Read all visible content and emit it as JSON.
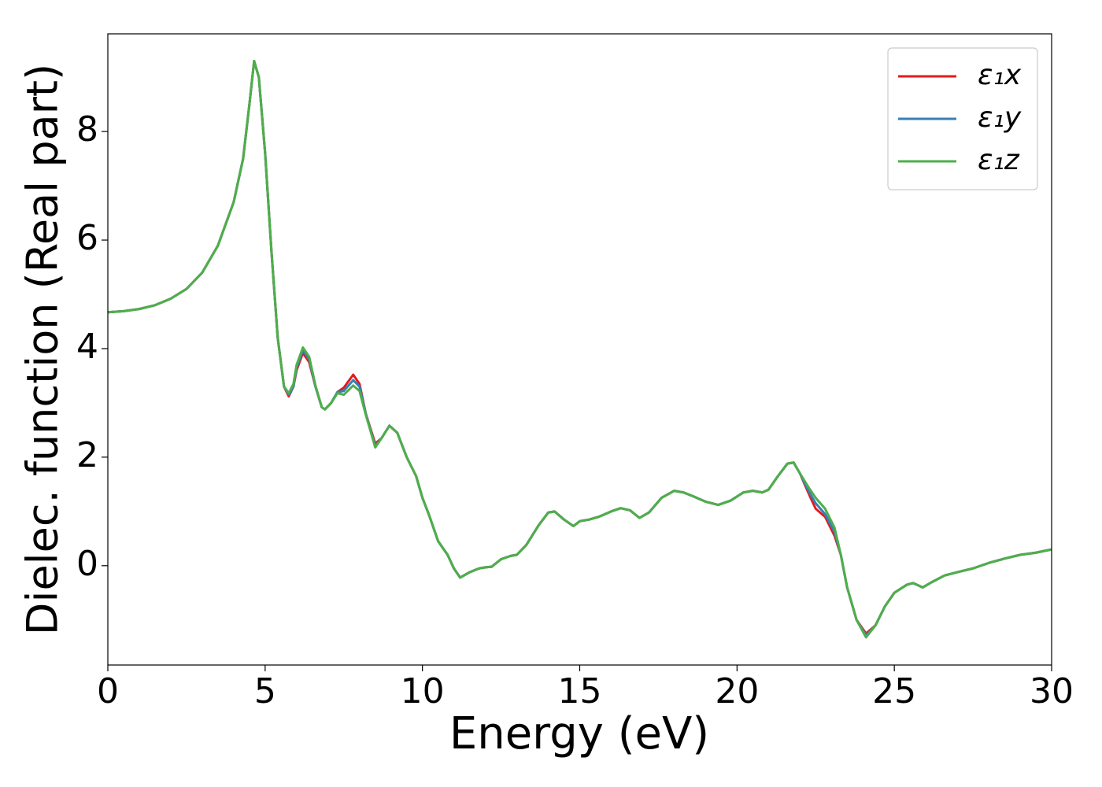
{
  "chart_data": {
    "type": "line",
    "xlabel": "Energy (eV)",
    "ylabel": "Dielec. function (Real part)",
    "x": [
      0,
      0.5,
      1,
      1.5,
      2,
      2.5,
      3,
      3.5,
      4,
      4.3,
      4.5,
      4.65,
      4.8,
      5.0,
      5.2,
      5.4,
      5.6,
      5.75,
      5.9,
      6.0,
      6.2,
      6.4,
      6.6,
      6.8,
      6.9,
      7.1,
      7.3,
      7.5,
      7.8,
      8.0,
      8.2,
      8.5,
      8.7,
      8.95,
      9.2,
      9.5,
      9.8,
      10.0,
      10.2,
      10.5,
      10.8,
      11.0,
      11.2,
      11.5,
      11.8,
      12.0,
      12.2,
      12.5,
      12.8,
      13.0,
      13.3,
      13.7,
      14.0,
      14.2,
      14.5,
      14.8,
      15.0,
      15.3,
      15.6,
      16.0,
      16.3,
      16.6,
      16.9,
      17.2,
      17.6,
      18.0,
      18.3,
      18.6,
      19.0,
      19.4,
      19.8,
      20.2,
      20.5,
      20.8,
      21.0,
      21.3,
      21.6,
      21.8,
      22.0,
      22.3,
      22.5,
      22.8,
      23.1,
      23.3,
      23.5,
      23.8,
      24.1,
      24.4,
      24.7,
      25.0,
      25.4,
      25.6,
      25.9,
      26.2,
      26.6,
      27.0,
      27.5,
      28.0,
      28.5,
      29.0,
      29.5,
      30.0
    ],
    "series": [
      {
        "name": "ε₁x",
        "color": "#e41a1c",
        "values": [
          4.67,
          4.69,
          4.73,
          4.8,
          4.92,
          5.1,
          5.4,
          5.9,
          6.7,
          7.5,
          8.5,
          9.3,
          9.0,
          7.6,
          5.8,
          4.2,
          3.3,
          3.12,
          3.3,
          3.6,
          3.92,
          3.75,
          3.3,
          2.92,
          2.88,
          3.0,
          3.2,
          3.28,
          3.52,
          3.35,
          2.8,
          2.25,
          2.35,
          2.58,
          2.45,
          2.0,
          1.65,
          1.25,
          0.95,
          0.45,
          0.2,
          -0.05,
          -0.22,
          -0.12,
          -0.05,
          -0.03,
          -0.02,
          0.12,
          0.18,
          0.2,
          0.38,
          0.75,
          0.98,
          1.0,
          0.85,
          0.73,
          0.82,
          0.85,
          0.9,
          1.0,
          1.06,
          1.02,
          0.88,
          0.98,
          1.25,
          1.38,
          1.35,
          1.28,
          1.18,
          1.12,
          1.2,
          1.35,
          1.38,
          1.35,
          1.4,
          1.65,
          1.88,
          1.9,
          1.7,
          1.3,
          1.05,
          0.9,
          0.55,
          0.2,
          -0.4,
          -1.0,
          -1.25,
          -1.1,
          -0.75,
          -0.5,
          -0.35,
          -0.32,
          -0.4,
          -0.3,
          -0.18,
          -0.12,
          -0.05,
          0.05,
          0.13,
          0.2,
          0.24,
          0.3
        ]
      },
      {
        "name": "ε₁y",
        "color": "#377eb8",
        "values": [
          4.67,
          4.69,
          4.73,
          4.8,
          4.92,
          5.1,
          5.4,
          5.9,
          6.7,
          7.5,
          8.5,
          9.3,
          9.0,
          7.6,
          5.8,
          4.2,
          3.3,
          3.15,
          3.3,
          3.65,
          3.97,
          3.8,
          3.3,
          2.92,
          2.88,
          3.0,
          3.2,
          3.22,
          3.42,
          3.3,
          2.8,
          2.2,
          2.35,
          2.58,
          2.45,
          2.0,
          1.65,
          1.25,
          0.95,
          0.45,
          0.2,
          -0.05,
          -0.22,
          -0.12,
          -0.05,
          -0.03,
          -0.02,
          0.12,
          0.18,
          0.2,
          0.38,
          0.75,
          0.98,
          1.0,
          0.85,
          0.73,
          0.82,
          0.85,
          0.9,
          1.0,
          1.06,
          1.02,
          0.88,
          0.98,
          1.25,
          1.38,
          1.35,
          1.28,
          1.18,
          1.12,
          1.2,
          1.35,
          1.38,
          1.35,
          1.4,
          1.65,
          1.88,
          1.9,
          1.7,
          1.35,
          1.15,
          0.95,
          0.62,
          0.2,
          -0.4,
          -1.0,
          -1.28,
          -1.1,
          -0.75,
          -0.5,
          -0.35,
          -0.32,
          -0.4,
          -0.3,
          -0.18,
          -0.12,
          -0.05,
          0.05,
          0.13,
          0.2,
          0.24,
          0.3
        ]
      },
      {
        "name": "ε₁z",
        "color": "#4daf4a",
        "values": [
          4.67,
          4.69,
          4.73,
          4.8,
          4.92,
          5.1,
          5.4,
          5.9,
          6.7,
          7.5,
          8.5,
          9.3,
          9.0,
          7.6,
          5.8,
          4.2,
          3.3,
          3.18,
          3.35,
          3.7,
          4.02,
          3.85,
          3.32,
          2.92,
          2.88,
          3.0,
          3.18,
          3.15,
          3.32,
          3.22,
          2.78,
          2.18,
          2.35,
          2.58,
          2.45,
          2.0,
          1.65,
          1.25,
          0.95,
          0.45,
          0.2,
          -0.05,
          -0.22,
          -0.12,
          -0.05,
          -0.03,
          -0.02,
          0.12,
          0.18,
          0.2,
          0.38,
          0.75,
          0.98,
          1.0,
          0.85,
          0.73,
          0.82,
          0.85,
          0.9,
          1.0,
          1.06,
          1.02,
          0.88,
          0.98,
          1.25,
          1.38,
          1.35,
          1.28,
          1.18,
          1.12,
          1.2,
          1.35,
          1.38,
          1.35,
          1.4,
          1.65,
          1.88,
          1.9,
          1.7,
          1.42,
          1.25,
          1.05,
          0.7,
          0.2,
          -0.4,
          -1.0,
          -1.32,
          -1.1,
          -0.75,
          -0.5,
          -0.35,
          -0.32,
          -0.4,
          -0.3,
          -0.18,
          -0.12,
          -0.05,
          0.05,
          0.13,
          0.2,
          0.24,
          0.3
        ]
      }
    ],
    "xlim": [
      0,
      30
    ],
    "ylim": [
      -1.83,
      9.8
    ],
    "xticks": [
      0,
      5,
      10,
      15,
      20,
      25,
      30
    ],
    "yticks": [
      0,
      2,
      4,
      6,
      8
    ],
    "legend": "upper right"
  }
}
